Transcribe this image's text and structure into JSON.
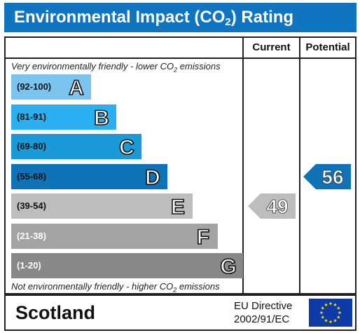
{
  "title_pre": "Environmental Impact (CO",
  "title_sub": "2",
  "title_post": ") Rating",
  "columns": {
    "current": "Current",
    "potential": "Potential"
  },
  "top_note": {
    "pre": "Very environmentally friendly - lower CO",
    "sub": "2",
    "post": " emissions"
  },
  "bottom_note": {
    "pre": "Not environmentally friendly - higher CO",
    "sub": "2",
    "post": " emissions"
  },
  "chart_data": {
    "type": "bar",
    "categories": [
      "A",
      "B",
      "C",
      "D",
      "E",
      "F",
      "G"
    ],
    "ranges": [
      "(92-100)",
      "(81-91)",
      "(69-80)",
      "(55-68)",
      "(39-54)",
      "(21-38)",
      "(1-20)"
    ],
    "band_colors": [
      "#7cc4f0",
      "#2ab0f0",
      "#1a9ad8",
      "#0f73b8",
      "#bdbdbd",
      "#a3a3a3",
      "#888888"
    ],
    "range_text_colors": [
      "#111111",
      "#111111",
      "#111111",
      "#111111",
      "#111111",
      "#ffffff",
      "#ffffff"
    ],
    "current": {
      "value": 49,
      "band": "E",
      "color": "#bdbdbd"
    },
    "potential": {
      "value": 56,
      "band": "D",
      "color": "#0f73b8"
    }
  },
  "footer": {
    "country": "Scotland",
    "directive_line1": "EU Directive",
    "directive_line2": "2002/91/EC",
    "flag_icon": "eu-flag-icon"
  }
}
